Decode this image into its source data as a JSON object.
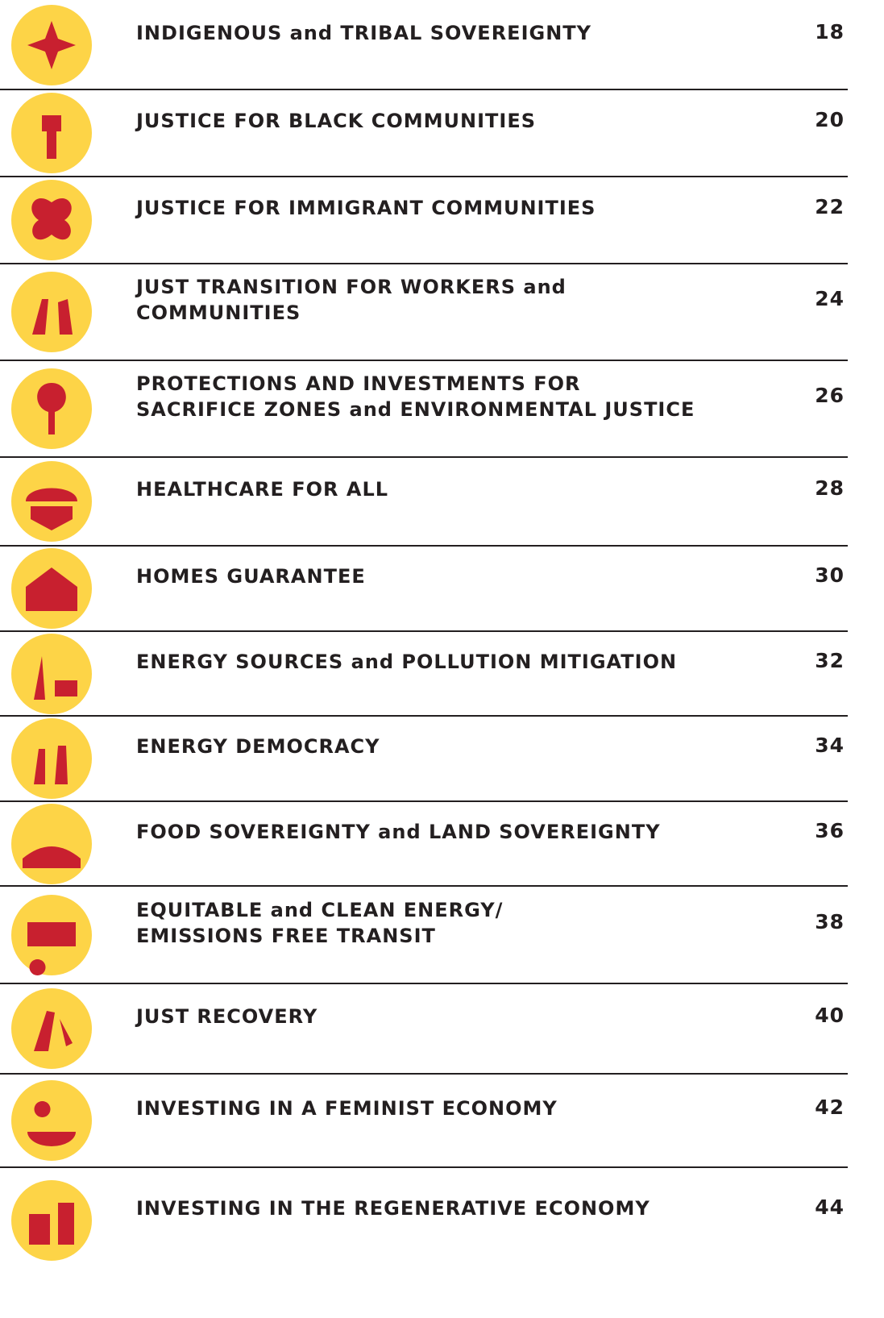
{
  "entries": [
    {
      "title": [
        "INDIGENOUS and TRIBAL SOVEREIGNTY"
      ],
      "page": 18
    },
    {
      "title": [
        "JUSTICE FOR BLACK COMMUNITIES"
      ],
      "page": 20
    },
    {
      "title": [
        "JUSTICE FOR IMMIGRANT COMMUNITIES"
      ],
      "page": 22
    },
    {
      "title": [
        "JUST TRANSITION FOR WORKERS and",
        "COMMUNITIES"
      ],
      "page": 24
    },
    {
      "title": [
        "PROTECTIONS AND INVESTMENTS FOR",
        "SACRIFICE ZONES and ENVIRONMENTAL JUSTICE"
      ],
      "page": 26
    },
    {
      "title": [
        "HEALTHCARE FOR ALL"
      ],
      "page": 28
    },
    {
      "title": [
        "HOMES GUARANTEE"
      ],
      "page": 30
    },
    {
      "title": [
        "ENERGY SOURCES and POLLUTION MITIGATION"
      ],
      "page": 32
    },
    {
      "title": [
        "ENERGY DEMOCRACY"
      ],
      "page": 34
    },
    {
      "title": [
        "FOOD SOVEREIGNTY and LAND SOVEREIGNTY"
      ],
      "page": 36
    },
    {
      "title": [
        "EQUITABLE and CLEAN ENERGY/",
        "EMISSIONS FREE TRANSIT"
      ],
      "page": 38
    },
    {
      "title": [
        "JUST RECOVERY"
      ],
      "page": 40
    },
    {
      "title": [
        "INVESTING IN A FEMINIST ECONOMY"
      ],
      "page": 42
    },
    {
      "title": [
        "INVESTING IN THE REGENERATIVE ECONOMY"
      ],
      "page": 44
    }
  ]
}
